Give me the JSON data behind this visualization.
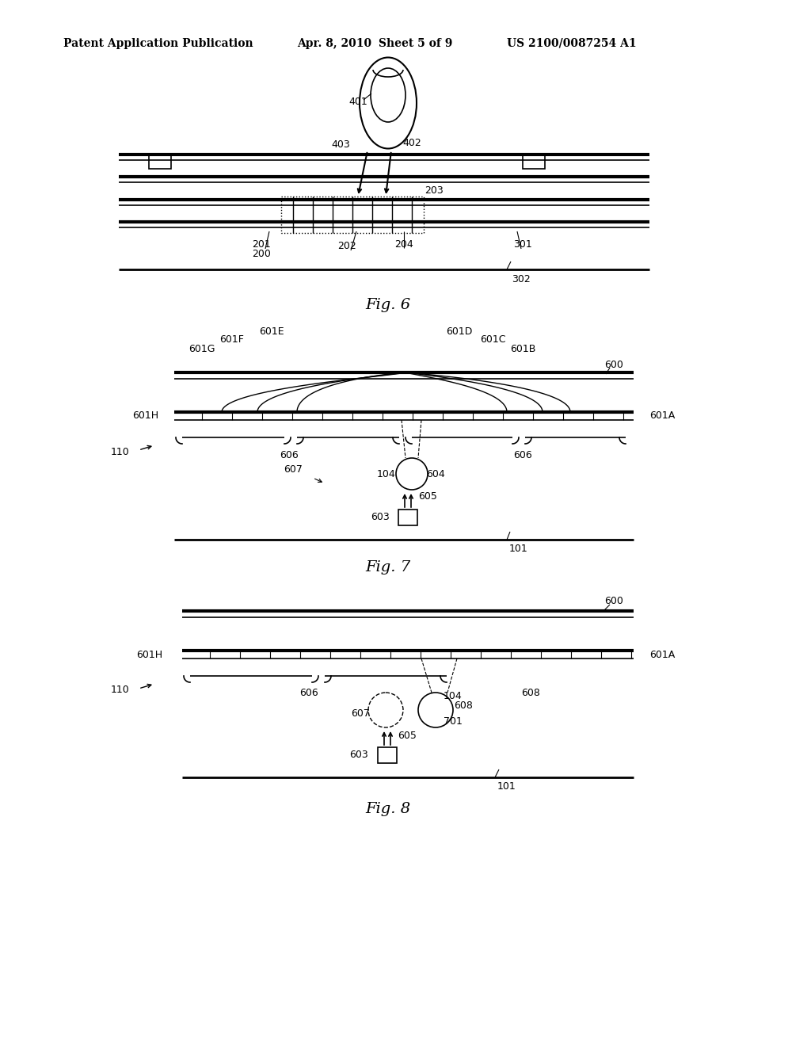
{
  "bg_color": "#ffffff",
  "line_color": "#000000",
  "header_patent_num": "US 2100/0087254 A1",
  "fig_titles": [
    "Fig. 6",
    "Fig. 7",
    "Fig. 8"
  ]
}
